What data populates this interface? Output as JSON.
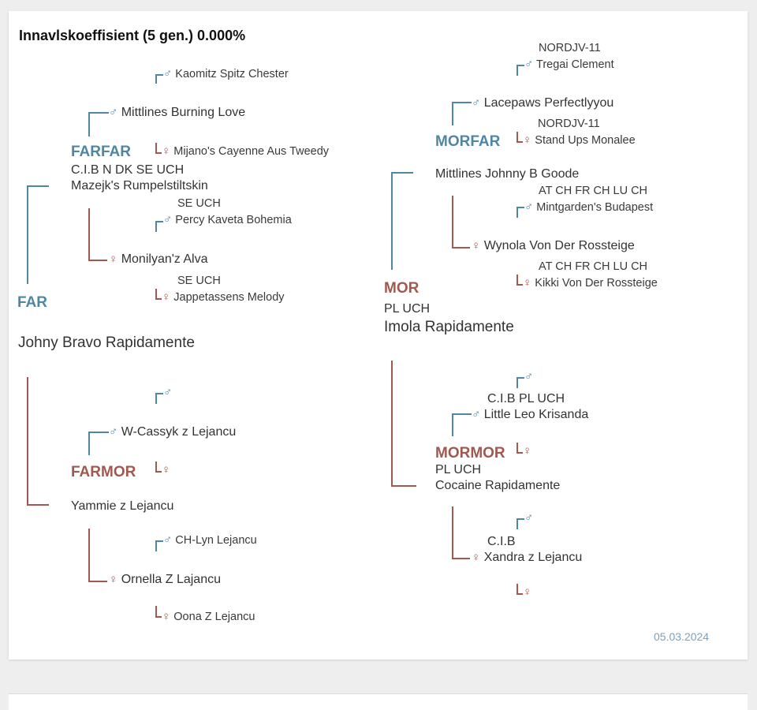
{
  "title": "Innavlskoeffisient (5 gen.) 0.000%",
  "date": "05.03.2024",
  "symbols": {
    "male": "♂",
    "female": "♀"
  },
  "colors": {
    "male_line": "#4f86a4",
    "female_line": "#a2584f",
    "date": "#7da1bf"
  },
  "far": {
    "label": "FAR",
    "name": "Johny Bravo Rapidamente",
    "farfar": {
      "label": "FARFAR",
      "titles": "C.I.B N DK SE UCH",
      "name": "Mazejk's Rumpelstiltskin",
      "sire": {
        "name": "Mittlines Burning Love",
        "sire": {
          "titles": "",
          "name": "Kaomitz Spitz Chester"
        },
        "dam": {
          "titles": "",
          "name": "Mijano's Cayenne Aus Tweedy"
        }
      },
      "dam": {
        "name": "Monilyan'z Alva",
        "sire": {
          "titles": "SE UCH",
          "name": "Percy Kaveta Bohemia"
        },
        "dam": {
          "titles": "SE UCH",
          "name": "Jappetassens Melody"
        }
      }
    },
    "farmor": {
      "label": "FARMOR",
      "name": "Yammie z Lejancu",
      "sire": {
        "name": "W-Cassyk z Lejancu",
        "sire": {
          "name": ""
        },
        "dam": {
          "name": ""
        }
      },
      "dam": {
        "name": "Ornella Z Lajancu",
        "sire": {
          "name": "CH-Lyn Lejancu"
        },
        "dam": {
          "name": "Oona Z Lejancu"
        }
      }
    }
  },
  "mor": {
    "label": "MOR",
    "titles": "PL UCH",
    "name": "Imola Rapidamente",
    "morfar": {
      "label": "MORFAR",
      "name": "Mittlines Johnny B Goode",
      "sire": {
        "name": "Lacepaws Perfectlyyou",
        "sire": {
          "titles": "NORDJV-11",
          "name": "Tregai Clement"
        },
        "dam": {
          "titles": "NORDJV-11",
          "name": "Stand Ups Monalee"
        }
      },
      "dam": {
        "name": "Wynola Von Der Rossteige",
        "sire": {
          "titles": "AT CH FR CH LU CH",
          "name": "Mintgarden's Budapest"
        },
        "dam": {
          "titles": "AT CH FR CH LU CH",
          "name": "Kikki Von Der Rossteige"
        }
      }
    },
    "mormor": {
      "label": "MORMOR",
      "titles": "PL UCH",
      "name": "Cocaine Rapidamente",
      "sire": {
        "titles": "C.I.B PL UCH",
        "name": "Little Leo Krisanda",
        "sire": {
          "name": ""
        },
        "dam": {
          "name": ""
        }
      },
      "dam": {
        "titles": "C.I.B",
        "name": "Xandra z Lejancu",
        "sire": {
          "name": ""
        },
        "dam": {
          "name": ""
        }
      }
    }
  }
}
